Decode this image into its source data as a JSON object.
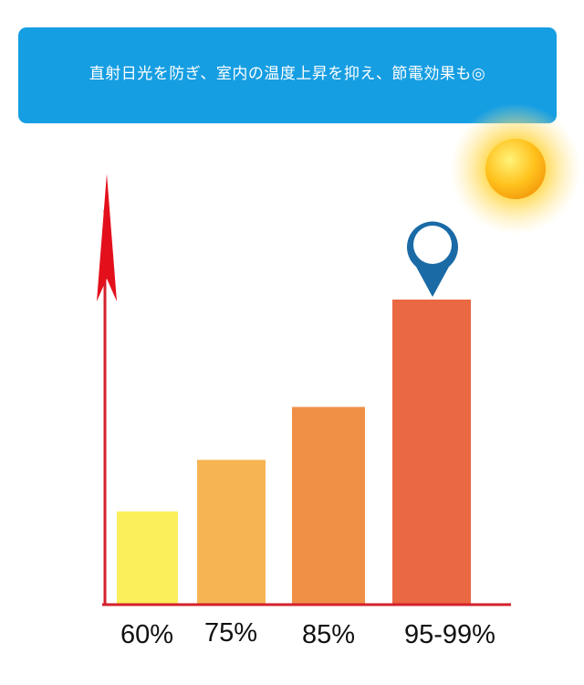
{
  "banner": {
    "text": "直射日光を防ぎ、室内の温度上昇を抑え、節電効果も◎",
    "color": "#169ee2"
  },
  "sun_icon": "sun-icon",
  "marker_icon": "location-pin-icon",
  "chart_data": {
    "type": "bar",
    "title": "",
    "xlabel": "",
    "ylabel": "",
    "categories": [
      "60%",
      "75%",
      "85%",
      "95-99%"
    ],
    "values": [
      60,
      75,
      85,
      99
    ],
    "colors": [
      "#fbef5c",
      "#f6b452",
      "#f09047",
      "#ea6842"
    ],
    "axis_color": "#d4202c",
    "marker_color": "#1a6aa6",
    "grid": false,
    "highlighted_category": "95-99%"
  }
}
